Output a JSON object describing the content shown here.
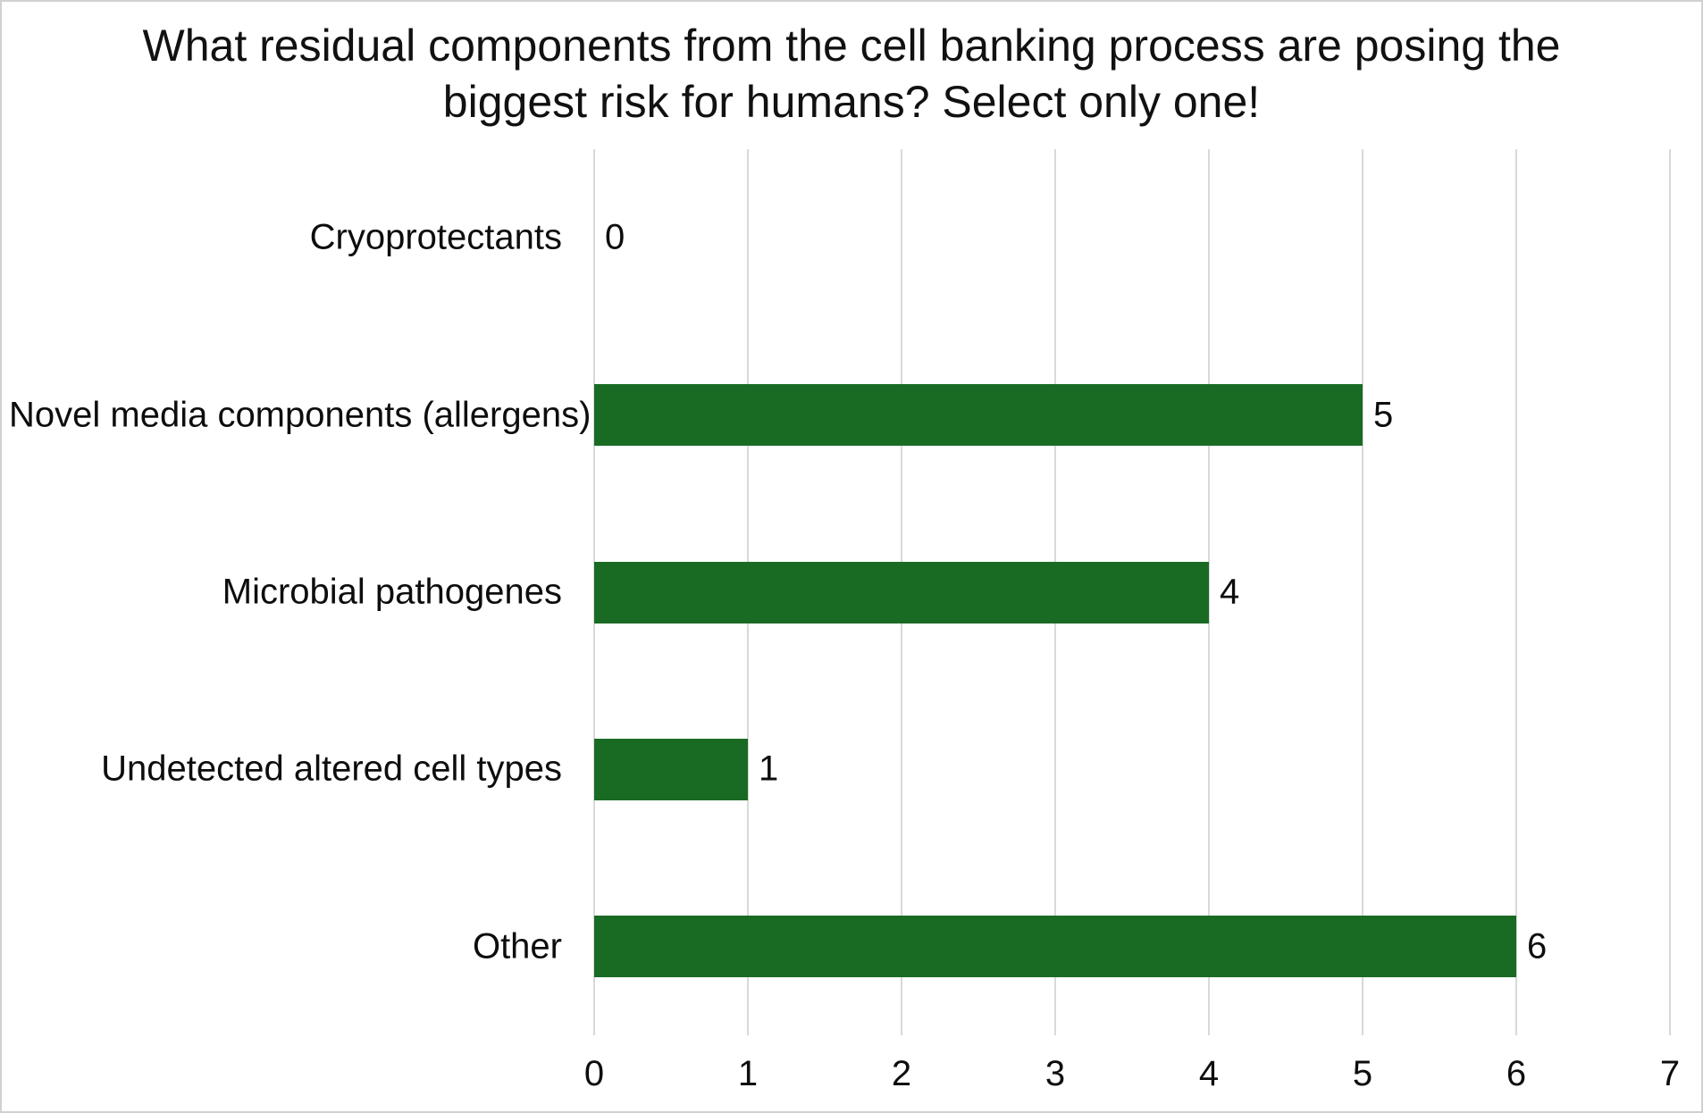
{
  "chart_data": {
    "type": "bar",
    "orientation": "horizontal",
    "title": "What residual components from the cell banking process are posing the biggest risk for humans? Select only one!",
    "title_lines": [
      "What residual components from the cell banking process are posing the",
      "biggest risk for humans? Select only one!"
    ],
    "categories": [
      "Cryoprotectants",
      "Novel media components (allergens)",
      "Microbial pathogenes",
      "Undetected altered cell types",
      "Other"
    ],
    "values": [
      0,
      5,
      4,
      1,
      6
    ],
    "data_labels": [
      "0",
      "5",
      "4",
      "1",
      "6"
    ],
    "xlabel": "",
    "ylabel": "",
    "xlim": [
      0,
      7
    ],
    "xticks": [
      "0",
      "1",
      "2",
      "3",
      "4",
      "5",
      "6",
      "7"
    ],
    "grid": "vertical-only",
    "legend": "none",
    "colors": {
      "bar": "#196B24",
      "gridline": "#d9d9d9",
      "text": "#0d0d0d",
      "frame_border": "#d1d1d4",
      "background": "#ffffff"
    }
  }
}
